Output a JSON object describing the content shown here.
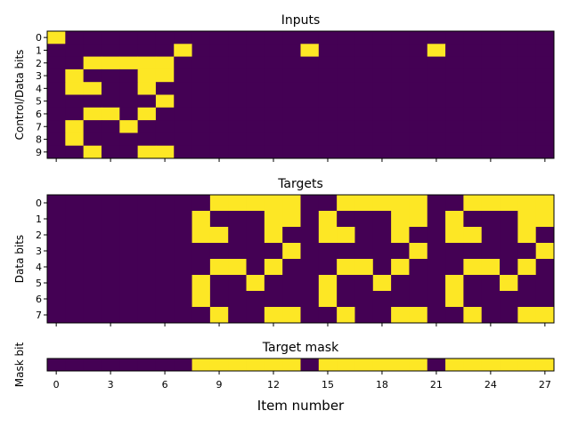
{
  "colors": {
    "off": "#440154",
    "on": "#fde725",
    "axis": "#000000",
    "background": "#ffffff"
  },
  "xlabel": "Item number",
  "xticks": [
    0,
    3,
    6,
    9,
    12,
    15,
    18,
    21,
    24,
    27
  ],
  "chart_data": [
    {
      "type": "heatmap",
      "title": "Inputs",
      "ylabel": "Control/Data bits",
      "yticks": [
        0,
        1,
        2,
        3,
        4,
        5,
        6,
        7,
        8,
        9
      ],
      "xlim": [
        0,
        27
      ],
      "ylim": [
        0,
        9
      ],
      "colormap": "viridis",
      "rows": [
        [
          1,
          0,
          0,
          0,
          0,
          0,
          0,
          0,
          0,
          0,
          0,
          0,
          0,
          0,
          0,
          0,
          0,
          0,
          0,
          0,
          0,
          0,
          0,
          0,
          0,
          0,
          0,
          0
        ],
        [
          0,
          0,
          0,
          0,
          0,
          0,
          0,
          1,
          0,
          0,
          0,
          0,
          0,
          0,
          1,
          0,
          0,
          0,
          0,
          0,
          0,
          1,
          0,
          0,
          0,
          0,
          0,
          0
        ],
        [
          0,
          0,
          1,
          1,
          1,
          1,
          1,
          0,
          0,
          0,
          0,
          0,
          0,
          0,
          0,
          0,
          0,
          0,
          0,
          0,
          0,
          0,
          0,
          0,
          0,
          0,
          0,
          0
        ],
        [
          0,
          1,
          0,
          0,
          0,
          1,
          1,
          0,
          0,
          0,
          0,
          0,
          0,
          0,
          0,
          0,
          0,
          0,
          0,
          0,
          0,
          0,
          0,
          0,
          0,
          0,
          0,
          0
        ],
        [
          0,
          1,
          1,
          0,
          0,
          1,
          0,
          0,
          0,
          0,
          0,
          0,
          0,
          0,
          0,
          0,
          0,
          0,
          0,
          0,
          0,
          0,
          0,
          0,
          0,
          0,
          0,
          0
        ],
        [
          0,
          0,
          0,
          0,
          0,
          0,
          1,
          0,
          0,
          0,
          0,
          0,
          0,
          0,
          0,
          0,
          0,
          0,
          0,
          0,
          0,
          0,
          0,
          0,
          0,
          0,
          0,
          0
        ],
        [
          0,
          0,
          1,
          1,
          0,
          1,
          0,
          0,
          0,
          0,
          0,
          0,
          0,
          0,
          0,
          0,
          0,
          0,
          0,
          0,
          0,
          0,
          0,
          0,
          0,
          0,
          0,
          0
        ],
        [
          0,
          1,
          0,
          0,
          1,
          0,
          0,
          0,
          0,
          0,
          0,
          0,
          0,
          0,
          0,
          0,
          0,
          0,
          0,
          0,
          0,
          0,
          0,
          0,
          0,
          0,
          0,
          0
        ],
        [
          0,
          1,
          0,
          0,
          0,
          0,
          0,
          0,
          0,
          0,
          0,
          0,
          0,
          0,
          0,
          0,
          0,
          0,
          0,
          0,
          0,
          0,
          0,
          0,
          0,
          0,
          0,
          0
        ],
        [
          0,
          0,
          1,
          0,
          0,
          1,
          1,
          0,
          0,
          0,
          0,
          0,
          0,
          0,
          0,
          0,
          0,
          0,
          0,
          0,
          0,
          0,
          0,
          0,
          0,
          0,
          0,
          0
        ]
      ]
    },
    {
      "type": "heatmap",
      "title": "Targets",
      "ylabel": "Data bits",
      "yticks": [
        0,
        1,
        2,
        3,
        4,
        5,
        6,
        7
      ],
      "xlim": [
        0,
        27
      ],
      "ylim": [
        0,
        7
      ],
      "colormap": "viridis",
      "rows": [
        [
          0,
          0,
          0,
          0,
          0,
          0,
          0,
          0,
          0,
          1,
          1,
          1,
          1,
          1,
          0,
          0,
          1,
          1,
          1,
          1,
          1,
          0,
          0,
          1,
          1,
          1,
          1,
          1
        ],
        [
          0,
          0,
          0,
          0,
          0,
          0,
          0,
          0,
          1,
          0,
          0,
          0,
          1,
          1,
          0,
          1,
          0,
          0,
          0,
          1,
          1,
          0,
          1,
          0,
          0,
          0,
          1,
          1
        ],
        [
          0,
          0,
          0,
          0,
          0,
          0,
          0,
          0,
          1,
          1,
          0,
          0,
          1,
          0,
          0,
          1,
          1,
          0,
          0,
          1,
          0,
          0,
          1,
          1,
          0,
          0,
          1,
          0
        ],
        [
          0,
          0,
          0,
          0,
          0,
          0,
          0,
          0,
          0,
          0,
          0,
          0,
          0,
          1,
          0,
          0,
          0,
          0,
          0,
          0,
          1,
          0,
          0,
          0,
          0,
          0,
          0,
          1
        ],
        [
          0,
          0,
          0,
          0,
          0,
          0,
          0,
          0,
          0,
          1,
          1,
          0,
          1,
          0,
          0,
          0,
          1,
          1,
          0,
          1,
          0,
          0,
          0,
          1,
          1,
          0,
          1,
          0
        ],
        [
          0,
          0,
          0,
          0,
          0,
          0,
          0,
          0,
          1,
          0,
          0,
          1,
          0,
          0,
          0,
          1,
          0,
          0,
          1,
          0,
          0,
          0,
          1,
          0,
          0,
          1,
          0,
          0
        ],
        [
          0,
          0,
          0,
          0,
          0,
          0,
          0,
          0,
          1,
          0,
          0,
          0,
          0,
          0,
          0,
          1,
          0,
          0,
          0,
          0,
          0,
          0,
          1,
          0,
          0,
          0,
          0,
          0
        ],
        [
          0,
          0,
          0,
          0,
          0,
          0,
          0,
          0,
          0,
          1,
          0,
          0,
          1,
          1,
          0,
          0,
          1,
          0,
          0,
          1,
          1,
          0,
          0,
          1,
          0,
          0,
          1,
          1
        ]
      ]
    },
    {
      "type": "heatmap",
      "title": "Target mask",
      "ylabel": "Mask bit",
      "yticks": [],
      "xlim": [
        0,
        27
      ],
      "colormap": "viridis",
      "rows": [
        [
          0,
          0,
          0,
          0,
          0,
          0,
          0,
          0,
          1,
          1,
          1,
          1,
          1,
          1,
          0,
          1,
          1,
          1,
          1,
          1,
          1,
          0,
          1,
          1,
          1,
          1,
          1,
          1
        ]
      ]
    }
  ]
}
